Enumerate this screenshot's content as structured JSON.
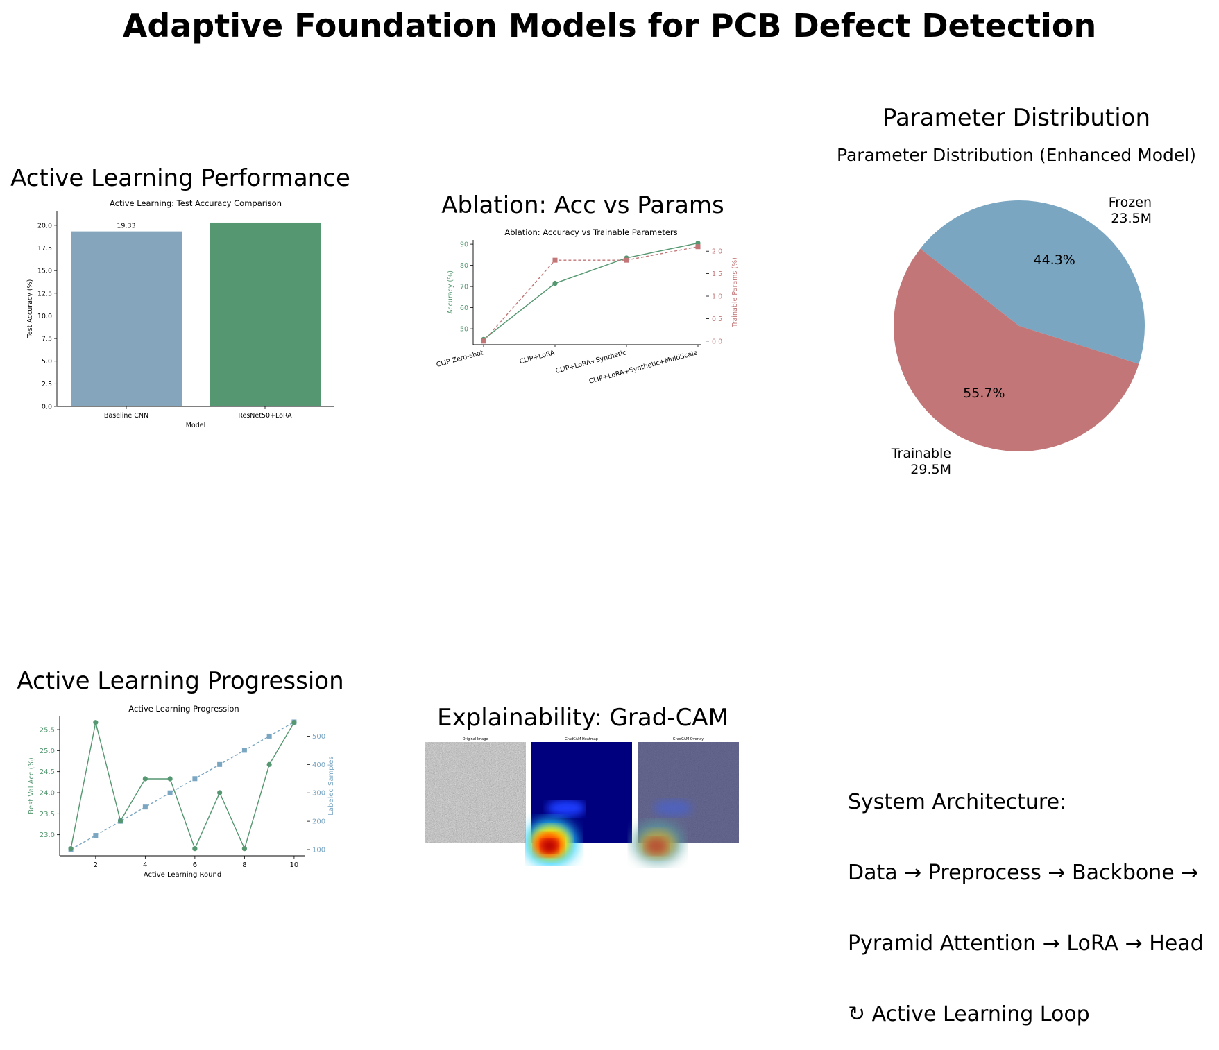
{
  "title": "Adaptive Foundation Models for PCB Defect Detection",
  "colors": {
    "blue": "#7aa6c2",
    "bar_blue": "#84a5bb",
    "green": "#549770",
    "red": "#c27677",
    "grid_axis": "#000000"
  },
  "panels": {
    "active_learning": {
      "title": "Active Learning Performance"
    },
    "ablation": {
      "title": "Ablation: Acc vs Params"
    },
    "param_dist": {
      "title": "Parameter Distribution"
    },
    "progression": {
      "title": "Active Learning Progression"
    },
    "explainability": {
      "title": "Explainability: Grad-CAM",
      "image_labels": [
        "Original Image",
        "GradCAM Heatmap",
        "GradCAM Overlay"
      ]
    },
    "architecture": {
      "lines": [
        "System Architecture:",
        "Data → Preprocess → Backbone →",
        "Pyramid Attention → LoRA → Head",
        "↻ Active Learning Loop"
      ]
    }
  },
  "chart_data": [
    {
      "type": "bar",
      "title": "Active Learning: Test Accuracy Comparison",
      "xlabel": "Model",
      "ylabel": "Test Accuracy (%)",
      "categories": [
        "Baseline CNN",
        "ResNet50+LoRA"
      ],
      "values": [
        19.33,
        20.3
      ],
      "data_labels": [
        "19.33",
        ""
      ],
      "ylim": [
        0,
        21.6
      ],
      "yticks": [
        0.0,
        2.5,
        5.0,
        7.5,
        10.0,
        12.5,
        15.0,
        17.5,
        20.0
      ],
      "ytick_labels": [
        "0.0",
        "2.5",
        "5.0",
        "7.5",
        "10.0",
        "12.5",
        "15.0",
        "17.5",
        "20.0"
      ]
    },
    {
      "type": "line",
      "title": "Ablation: Accuracy vs Trainable Parameters",
      "categories": [
        "CLIP Zero-shot",
        "CLIP+LoRA",
        "CLIP+LoRA+Synthetic",
        "CLIP+LoRA+Synthetic+MultiScale"
      ],
      "ylabel": "Accuracy (%)",
      "ylabel_right": "Trainable Params (%)",
      "series": [
        {
          "values": [
            45,
            71.5,
            83.5,
            90.5
          ],
          "axis": "left"
        },
        {
          "values": [
            0.0,
            1.8,
            1.8,
            2.1
          ],
          "axis": "right"
        }
      ],
      "ylim": [
        42.5,
        92
      ],
      "ylim_right": [
        -0.08,
        2.25
      ],
      "yticks": [
        50,
        60,
        70,
        80,
        90
      ],
      "yticks_right": [
        0.0,
        0.5,
        1.0,
        1.5,
        2.0
      ],
      "ytick_labels_right": [
        "0.0",
        "0.5",
        "1.0",
        "1.5",
        "2.0"
      ]
    },
    {
      "type": "pie",
      "title": "Parameter Distribution (Enhanced Model)",
      "slices": [
        {
          "label": "Frozen",
          "value_label": "23.5M",
          "value": 23.5,
          "pct_label": "44.3%",
          "color": "#7aa6c2"
        },
        {
          "label": "Trainable",
          "value_label": "29.5M",
          "value": 29.5,
          "pct_label": "55.7%",
          "color": "#c27677"
        }
      ]
    },
    {
      "type": "line",
      "title": "Active Learning Progression",
      "xlabel": "Active Learning Round",
      "ylabel": "Best Val Acc (%)",
      "ylabel_right": "Labeled Samples",
      "x": [
        1,
        2,
        3,
        4,
        5,
        6,
        7,
        8,
        9,
        10
      ],
      "series": [
        {
          "values": [
            22.67,
            25.67,
            23.33,
            24.33,
            24.33,
            22.67,
            24.0,
            22.67,
            24.67,
            25.67
          ],
          "axis": "left"
        },
        {
          "values": [
            100,
            150,
            200,
            250,
            300,
            350,
            400,
            450,
            500,
            550
          ],
          "axis": "right"
        }
      ],
      "xlim": [
        0.55,
        10.45
      ],
      "ylim": [
        22.5,
        25.83
      ],
      "ylim_right": [
        78,
        572
      ],
      "xticks": [
        2,
        4,
        6,
        8,
        10
      ],
      "yticks": [
        23.0,
        23.5,
        24.0,
        24.5,
        25.0,
        25.5
      ],
      "ytick_labels": [
        "23.0",
        "23.5",
        "24.0",
        "24.5",
        "25.0",
        "25.5"
      ],
      "yticks_right": [
        100,
        200,
        300,
        400,
        500
      ]
    }
  ]
}
